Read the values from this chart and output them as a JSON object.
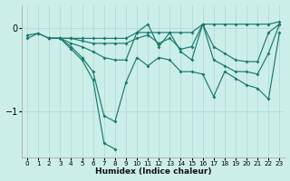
{
  "xlabel": "Humidex (Indice chaleur)",
  "bg_color": "#cceee8",
  "line_color": "#1a7a6e",
  "grid_color": "#b8ddd8",
  "xlim": [
    -0.5,
    23.5
  ],
  "ylim": [
    -1.55,
    0.28
  ],
  "yticks": [
    0,
    -1
  ],
  "xticks": [
    0,
    1,
    2,
    3,
    4,
    5,
    6,
    7,
    8,
    9,
    10,
    11,
    12,
    13,
    14,
    15,
    16,
    17,
    18,
    19,
    20,
    21,
    22,
    23
  ],
  "lines": [
    {
      "x": [
        0,
        1,
        2,
        3,
        4,
        5,
        6,
        7,
        8,
        9,
        10,
        11,
        12,
        13,
        14,
        15,
        16,
        17,
        18,
        19,
        20,
        21,
        22,
        23
      ],
      "y": [
        -0.08,
        -0.06,
        -0.12,
        -0.12,
        -0.12,
        -0.12,
        -0.12,
        -0.12,
        -0.12,
        -0.12,
        -0.05,
        -0.05,
        -0.05,
        -0.05,
        -0.05,
        -0.05,
        0.05,
        0.05,
        0.05,
        0.05,
        0.05,
        0.05,
        0.05,
        0.08
      ]
    },
    {
      "x": [
        0,
        1,
        2,
        3,
        4,
        5,
        6,
        7,
        8,
        9,
        10,
        11,
        12,
        13,
        14,
        15,
        16,
        17,
        18,
        19,
        20,
        21,
        22,
        23
      ],
      "y": [
        -0.12,
        -0.06,
        -0.12,
        -0.12,
        -0.12,
        -0.15,
        -0.18,
        -0.18,
        -0.18,
        -0.18,
        -0.12,
        -0.08,
        -0.18,
        -0.12,
        -0.25,
        -0.22,
        0.05,
        -0.22,
        -0.3,
        -0.38,
        -0.4,
        -0.4,
        -0.05,
        0.05
      ]
    },
    {
      "x": [
        2,
        3,
        4,
        5,
        6,
        7,
        8,
        9,
        10,
        11,
        12,
        13,
        14,
        15,
        16,
        17,
        18,
        19,
        20,
        21,
        22,
        23
      ],
      "y": [
        -0.12,
        -0.12,
        -0.18,
        -0.22,
        -0.28,
        -0.35,
        -0.38,
        -0.38,
        -0.05,
        0.05,
        -0.22,
        -0.05,
        -0.28,
        -0.38,
        0.05,
        -0.38,
        -0.45,
        -0.52,
        -0.52,
        -0.55,
        -0.3,
        0.05
      ]
    },
    {
      "x": [
        2,
        3,
        4,
        5,
        6,
        7,
        8,
        9,
        10,
        11,
        12,
        13,
        14,
        15,
        16,
        17,
        18,
        19,
        20,
        21,
        22,
        23
      ],
      "y": [
        -0.12,
        -0.12,
        -0.22,
        -0.35,
        -0.52,
        -1.05,
        -1.12,
        -0.65,
        -0.35,
        -0.45,
        -0.35,
        -0.38,
        -0.52,
        -0.52,
        -0.55,
        -0.82,
        -0.52,
        -0.6,
        -0.68,
        -0.72,
        -0.85,
        -0.05
      ]
    },
    {
      "x": [
        2,
        3,
        4,
        5,
        6,
        7,
        8
      ],
      "y": [
        -0.12,
        -0.12,
        -0.25,
        -0.38,
        -0.62,
        -1.38,
        -1.45
      ]
    }
  ]
}
